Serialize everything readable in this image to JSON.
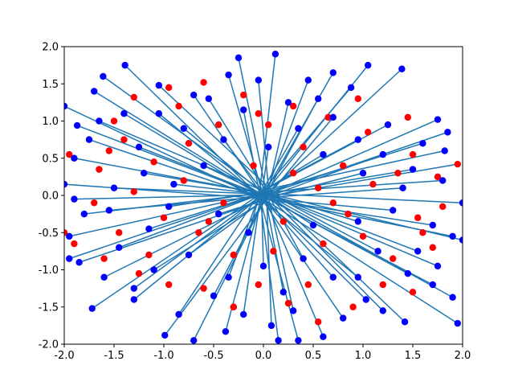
{
  "chart_data": {
    "type": "scatter",
    "title": "",
    "xlabel": "",
    "ylabel": "",
    "xlim": [
      -2.0,
      2.0
    ],
    "ylim": [
      -2.0,
      2.0
    ],
    "grid": false,
    "legend": "none",
    "x_ticks": [
      "-2.0",
      "-1.5",
      "-1.0",
      "-0.5",
      "0.0",
      "0.5",
      "1.0",
      "1.5",
      "2.0"
    ],
    "y_ticks": [
      "-2.0",
      "-1.5",
      "-1.0",
      "-0.5",
      "0.0",
      "0.5",
      "1.0",
      "1.5",
      "2.0"
    ],
    "colors": {
      "points_blue": "#0000ff",
      "points_red": "#ff0000",
      "segments": "#1f77b4"
    },
    "segments": [
      [
        -1.87,
        0.94,
        0.05,
        -0.04
      ],
      [
        -1.61,
        1.6,
        0.02,
        0.03
      ],
      [
        -1.39,
        1.75,
        -0.05,
        0.0
      ],
      [
        -1.05,
        1.48,
        0.1,
        0.05
      ],
      [
        -0.7,
        1.35,
        0.04,
        -0.1
      ],
      [
        -0.35,
        1.62,
        -0.02,
        0.08
      ],
      [
        -0.05,
        1.55,
        0.06,
        -0.03
      ],
      [
        0.12,
        1.9,
        -0.04,
        0.02
      ],
      [
        0.45,
        1.55,
        0.03,
        0.05
      ],
      [
        0.88,
        1.45,
        -0.06,
        -0.02
      ],
      [
        1.05,
        1.75,
        0.02,
        0.04
      ],
      [
        1.39,
        1.7,
        -0.03,
        -0.05
      ],
      [
        1.75,
        1.02,
        0.05,
        0.02
      ],
      [
        1.82,
        0.6,
        -0.04,
        0.06
      ],
      [
        1.95,
        0.42,
        0.03,
        -0.02
      ],
      [
        2.0,
        -0.1,
        -0.05,
        0.03
      ],
      [
        1.9,
        -0.55,
        0.02,
        -0.04
      ],
      [
        1.75,
        -0.95,
        -0.02,
        0.05
      ],
      [
        1.9,
        -1.37,
        0.04,
        0.01
      ],
      [
        1.95,
        -1.72,
        -0.03,
        -0.02
      ],
      [
        1.42,
        -1.7,
        0.05,
        0.04
      ],
      [
        1.03,
        -1.4,
        -0.04,
        0.02
      ],
      [
        0.6,
        -1.9,
        0.02,
        -0.05
      ],
      [
        0.35,
        -1.95,
        -0.05,
        0.03
      ],
      [
        0.08,
        -1.75,
        0.03,
        0.05
      ],
      [
        -0.38,
        -1.83,
        -0.02,
        -0.03
      ],
      [
        -0.99,
        -1.88,
        0.05,
        -0.02
      ],
      [
        -1.3,
        -1.4,
        0.02,
        0.04
      ],
      [
        -1.72,
        -1.52,
        -0.03,
        0.02
      ],
      [
        -1.85,
        -0.9,
        0.04,
        -0.05
      ],
      [
        -1.95,
        -0.55,
        0.01,
        0.03
      ],
      [
        -2.0,
        0.15,
        -0.02,
        -0.04
      ],
      [
        -1.9,
        0.5,
        0.05,
        0.01
      ],
      [
        -1.5,
        0.1,
        -0.04,
        0.02
      ],
      [
        -1.25,
        0.65,
        0.03,
        -0.02
      ],
      [
        -0.8,
        0.9,
        -0.02,
        0.05
      ],
      [
        -0.4,
        0.75,
        0.04,
        -0.03
      ],
      [
        0.35,
        0.9,
        -0.03,
        0.02
      ],
      [
        0.7,
        1.05,
        0.02,
        -0.05
      ],
      [
        1.25,
        0.95,
        -0.05,
        0.03
      ],
      [
        1.5,
        0.35,
        0.04,
        0.02
      ],
      [
        1.3,
        -0.2,
        -0.02,
        -0.04
      ],
      [
        1.15,
        -0.75,
        0.03,
        0.05
      ],
      [
        0.7,
        -1.1,
        -0.04,
        0.01
      ],
      [
        0.2,
        -1.3,
        0.02,
        -0.03
      ],
      [
        -0.35,
        -1.1,
        -0.03,
        0.04
      ],
      [
        -0.75,
        -0.8,
        0.05,
        -0.02
      ],
      [
        -1.15,
        -0.45,
        -0.02,
        0.03
      ],
      [
        -1.55,
        -0.2,
        0.04,
        -0.01
      ],
      [
        -1.7,
        1.4,
        -0.05,
        0.04
      ],
      [
        -1.4,
        1.1,
        0.03,
        -0.05
      ],
      [
        -1.2,
        0.3,
        0.02,
        0.02
      ],
      [
        -0.95,
        -0.15,
        -0.03,
        0.04
      ],
      [
        -0.6,
        0.4,
        0.05,
        -0.02
      ],
      [
        -0.2,
        1.15,
        -0.04,
        0.03
      ],
      [
        0.25,
        1.25,
        0.03,
        -0.04
      ],
      [
        0.6,
        0.55,
        -0.02,
        0.05
      ],
      [
        1.0,
        0.3,
        0.04,
        -0.03
      ],
      [
        1.6,
        0.7,
        -0.03,
        0.02
      ],
      [
        1.7,
        -0.4,
        0.02,
        -0.05
      ],
      [
        1.45,
        -1.05,
        -0.05,
        0.03
      ],
      [
        1.2,
        -1.55,
        0.03,
        0.02
      ],
      [
        0.8,
        -1.65,
        -0.02,
        -0.04
      ],
      [
        0.4,
        -0.85,
        0.05,
        0.01
      ],
      [
        -0.15,
        -0.5,
        -0.03,
        0.04
      ],
      [
        -0.5,
        -1.35,
        0.02,
        -0.02
      ],
      [
        -0.85,
        -1.6,
        -0.04,
        0.03
      ],
      [
        -1.1,
        -1.0,
        0.03,
        -0.05
      ],
      [
        -1.45,
        -0.7,
        -0.02,
        0.02
      ],
      [
        -1.8,
        -0.25,
        0.04,
        0.04
      ],
      [
        -2.0,
        1.2,
        -0.05,
        -0.03
      ],
      [
        -1.65,
        1.0,
        0.02,
        0.05
      ],
      [
        -1.05,
        1.1,
        -0.03,
        -0.02
      ],
      [
        -0.55,
        1.3,
        0.04,
        0.03
      ],
      [
        0.05,
        0.65,
        -0.02,
        -0.04
      ],
      [
        0.55,
        1.3,
        0.03,
        0.02
      ],
      [
        0.95,
        0.75,
        -0.05,
        0.04
      ],
      [
        1.4,
        0.1,
        0.02,
        -0.03
      ],
      [
        0.95,
        -0.35,
        -0.04,
        0.05
      ],
      [
        0.5,
        -0.4,
        0.05,
        -0.01
      ],
      [
        0.0,
        -0.95,
        -0.02,
        0.03
      ],
      [
        -0.45,
        -0.25,
        0.03,
        -0.05
      ],
      [
        -0.9,
        0.15,
        -0.04,
        0.02
      ],
      [
        -1.3,
        -1.25,
        0.02,
        0.04
      ],
      [
        -0.2,
        -1.6,
        -0.03,
        -0.02
      ],
      [
        0.3,
        -1.55,
        0.04,
        0.03
      ],
      [
        0.95,
        -1.1,
        -0.02,
        -0.05
      ],
      [
        1.55,
        -0.75,
        0.05,
        0.02
      ],
      [
        1.8,
        0.2,
        -0.03,
        0.04
      ],
      [
        1.2,
        0.55,
        0.02,
        -0.03
      ],
      [
        -1.95,
        -0.85,
        0.04,
        0.05
      ],
      [
        -1.75,
        0.75,
        -0.05,
        -0.02
      ],
      [
        -0.25,
        1.85,
        0.03,
        0.03
      ],
      [
        0.7,
        1.65,
        -0.02,
        -0.04
      ],
      [
        1.85,
        0.85,
        0.04,
        0.02
      ],
      [
        2.0,
        -0.6,
        -0.03,
        0.05
      ],
      [
        1.7,
        -1.2,
        0.02,
        -0.03
      ],
      [
        0.15,
        -1.95,
        -0.04,
        0.02
      ],
      [
        -0.7,
        -1.95,
        0.05,
        0.04
      ],
      [
        -1.6,
        -1.1,
        -0.02,
        -0.05
      ],
      [
        -1.9,
        -0.05,
        0.03,
        0.01
      ]
    ],
    "blue_points": [
      [
        -1.87,
        0.94
      ],
      [
        -1.61,
        1.6
      ],
      [
        -1.39,
        1.75
      ],
      [
        -1.05,
        1.48
      ],
      [
        -0.35,
        1.62
      ],
      [
        -0.05,
        1.55
      ],
      [
        0.12,
        1.9
      ],
      [
        0.45,
        1.55
      ],
      [
        0.88,
        1.45
      ],
      [
        1.05,
        1.75
      ],
      [
        1.39,
        1.7
      ],
      [
        1.75,
        1.02
      ],
      [
        1.82,
        0.6
      ],
      [
        2.0,
        -0.1
      ],
      [
        1.9,
        -0.55
      ],
      [
        1.75,
        -0.95
      ],
      [
        1.9,
        -1.37
      ],
      [
        1.95,
        -1.72
      ],
      [
        1.03,
        -1.4
      ],
      [
        0.35,
        -1.95
      ],
      [
        0.08,
        -1.75
      ],
      [
        -0.38,
        -1.83
      ],
      [
        -0.99,
        -1.88
      ],
      [
        -1.3,
        -1.4
      ],
      [
        -1.72,
        -1.52
      ],
      [
        -1.85,
        -0.9
      ],
      [
        -1.95,
        -0.55
      ],
      [
        -1.9,
        0.5
      ],
      [
        -1.5,
        0.1
      ],
      [
        -0.8,
        0.9
      ],
      [
        -0.4,
        0.75
      ],
      [
        0.35,
        0.9
      ],
      [
        0.7,
        1.05
      ],
      [
        1.25,
        0.95
      ],
      [
        1.3,
        -0.2
      ],
      [
        1.15,
        -0.75
      ],
      [
        0.7,
        -1.1
      ],
      [
        0.2,
        -1.3
      ],
      [
        -0.35,
        -1.1
      ],
      [
        -0.75,
        -0.8
      ],
      [
        -1.15,
        -0.45
      ],
      [
        -1.7,
        1.4
      ],
      [
        -1.2,
        0.3
      ],
      [
        -0.95,
        -0.15
      ],
      [
        -0.2,
        1.15
      ],
      [
        0.25,
        1.25
      ],
      [
        1.0,
        0.3
      ],
      [
        1.6,
        0.7
      ],
      [
        1.7,
        -0.4
      ],
      [
        1.2,
        -1.55
      ],
      [
        0.4,
        -0.85
      ],
      [
        -0.15,
        -0.5
      ],
      [
        -0.85,
        -1.6
      ],
      [
        -1.45,
        -0.7
      ],
      [
        -1.8,
        -0.25
      ],
      [
        -2.0,
        1.2
      ],
      [
        -1.05,
        1.1
      ],
      [
        0.05,
        0.65
      ],
      [
        0.55,
        1.3
      ],
      [
        1.4,
        0.1
      ],
      [
        0.95,
        -0.35
      ],
      [
        0.0,
        -0.95
      ],
      [
        -0.9,
        0.15
      ],
      [
        -0.2,
        -1.6
      ],
      [
        0.95,
        -1.1
      ],
      [
        1.55,
        -0.75
      ],
      [
        1.8,
        0.2
      ],
      [
        -1.95,
        -0.85
      ],
      [
        -1.75,
        0.75
      ],
      [
        0.7,
        1.65
      ],
      [
        1.85,
        0.85
      ],
      [
        2.0,
        -0.6
      ],
      [
        1.7,
        -1.2
      ],
      [
        0.15,
        -1.95
      ],
      [
        -1.6,
        -1.1
      ],
      [
        -0.6,
        0.4
      ],
      [
        0.6,
        0.55
      ],
      [
        0.5,
        -0.4
      ],
      [
        -0.45,
        -0.25
      ],
      [
        -1.3,
        -1.25
      ],
      [
        0.3,
        -1.55
      ],
      [
        1.2,
        0.55
      ],
      [
        -0.25,
        1.85
      ],
      [
        -0.7,
        -1.95
      ],
      [
        -1.9,
        -0.05
      ],
      [
        -1.25,
        0.65
      ],
      [
        -0.55,
        1.3
      ],
      [
        0.95,
        0.75
      ],
      [
        0.8,
        -1.65
      ],
      [
        -0.5,
        -1.35
      ],
      [
        -1.1,
        -1.0
      ],
      [
        1.45,
        -1.05
      ],
      [
        -1.4,
        1.1
      ],
      [
        -1.65,
        1.0
      ],
      [
        1.5,
        0.35
      ],
      [
        -1.55,
        -0.2
      ],
      [
        0.6,
        -1.9
      ],
      [
        1.42,
        -1.7
      ],
      [
        -2.0,
        0.15
      ],
      [
        -0.7,
        1.35
      ]
    ],
    "red_points": [
      [
        -0.95,
        1.45
      ],
      [
        -1.3,
        1.32
      ],
      [
        -0.6,
        1.52
      ],
      [
        -0.2,
        1.35
      ],
      [
        0.3,
        1.2
      ],
      [
        0.65,
        1.05
      ],
      [
        1.05,
        0.85
      ],
      [
        1.5,
        0.55
      ],
      [
        1.75,
        0.25
      ],
      [
        1.55,
        -0.3
      ],
      [
        1.8,
        -0.15
      ],
      [
        1.6,
        -0.5
      ],
      [
        1.3,
        -0.85
      ],
      [
        1.5,
        -1.3
      ],
      [
        0.9,
        -1.5
      ],
      [
        0.55,
        -1.7
      ],
      [
        0.25,
        -1.45
      ],
      [
        -0.05,
        -1.2
      ],
      [
        -0.3,
        -1.5
      ],
      [
        -0.6,
        -1.25
      ],
      [
        -0.95,
        -1.2
      ],
      [
        -1.15,
        -0.8
      ],
      [
        -1.45,
        -0.5
      ],
      [
        -1.7,
        -0.1
      ],
      [
        -1.95,
        0.55
      ],
      [
        -1.65,
        0.35
      ],
      [
        -1.4,
        0.75
      ],
      [
        -1.1,
        0.45
      ],
      [
        -0.85,
        1.2
      ],
      [
        -0.45,
        0.95
      ],
      [
        0.05,
        0.95
      ],
      [
        0.4,
        0.65
      ],
      [
        0.8,
        0.4
      ],
      [
        1.1,
        0.15
      ],
      [
        0.85,
        -0.25
      ],
      [
        0.6,
        -0.65
      ],
      [
        0.1,
        -0.75
      ],
      [
        -0.3,
        -0.8
      ],
      [
        -0.65,
        -0.5
      ],
      [
        -1.0,
        -0.3
      ],
      [
        -1.3,
        0.05
      ],
      [
        -1.5,
        1.0
      ],
      [
        -0.75,
        0.7
      ],
      [
        -0.1,
        0.4
      ],
      [
        0.3,
        0.3
      ],
      [
        0.7,
        -0.1
      ],
      [
        0.2,
        -0.35
      ],
      [
        -0.4,
        -0.1
      ],
      [
        -0.8,
        0.2
      ],
      [
        1.95,
        0.42
      ],
      [
        1.45,
        1.05
      ],
      [
        0.95,
        1.3
      ],
      [
        -1.9,
        -0.65
      ],
      [
        -1.6,
        -0.85
      ],
      [
        -1.25,
        -1.05
      ],
      [
        -0.3,
        -1.5
      ],
      [
        0.45,
        -1.2
      ],
      [
        1.2,
        -1.2
      ],
      [
        1.7,
        -0.7
      ],
      [
        1.35,
        0.3
      ],
      [
        -2.0,
        -0.5
      ],
      [
        -1.55,
        0.6
      ],
      [
        -0.05,
        1.1
      ],
      [
        0.55,
        0.1
      ],
      [
        -0.55,
        -0.35
      ],
      [
        1.0,
        -0.55
      ]
    ]
  }
}
